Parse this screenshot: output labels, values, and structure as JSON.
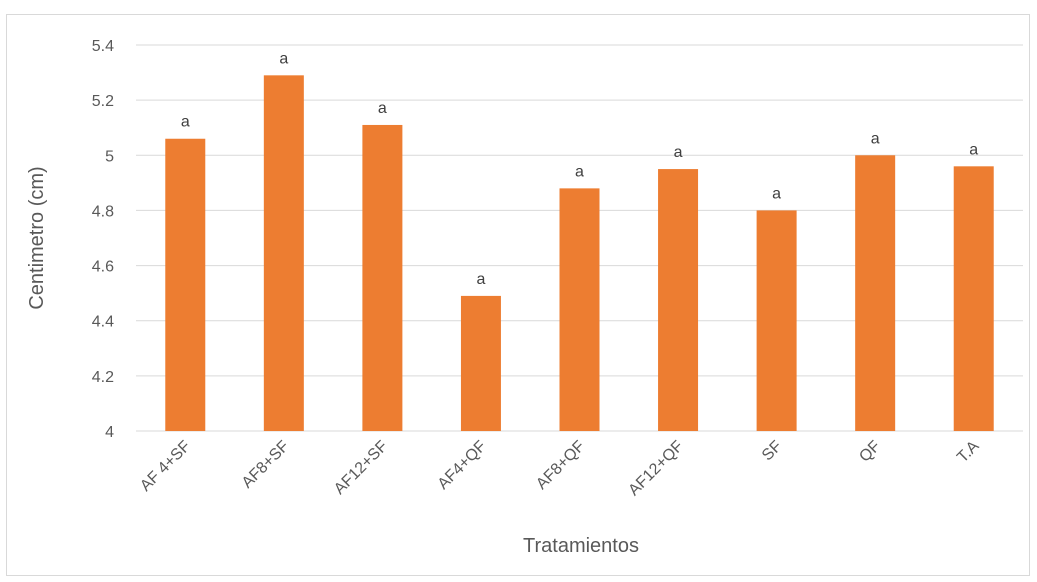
{
  "chart_data": {
    "type": "bar",
    "title": "",
    "xlabel": "Tratamientos",
    "ylabel": "Centimetro (cm)",
    "ylim": [
      4,
      5.4
    ],
    "ytick_step": 0.2,
    "ytick_labels": [
      "4",
      "4.2",
      "4.4",
      "4.6",
      "4.8",
      "5",
      "5.2",
      "5.4"
    ],
    "categories": [
      "AF 4+SF",
      "AF8+SF",
      "AF12+SF",
      "AF4+QF",
      "AF8+QF",
      "AF12+QF",
      "SF",
      "QF",
      "T.A"
    ],
    "values": [
      5.06,
      5.29,
      5.11,
      4.49,
      4.88,
      4.95,
      4.8,
      5.0,
      4.96
    ],
    "data_labels": [
      "a",
      "a",
      "a",
      "a",
      "a",
      "a",
      "a",
      "a",
      "a"
    ],
    "grid": true,
    "legend": "none",
    "colors": {
      "bar": "#ED7D31",
      "grid": "#d9d9d9",
      "text": "#595959"
    }
  }
}
